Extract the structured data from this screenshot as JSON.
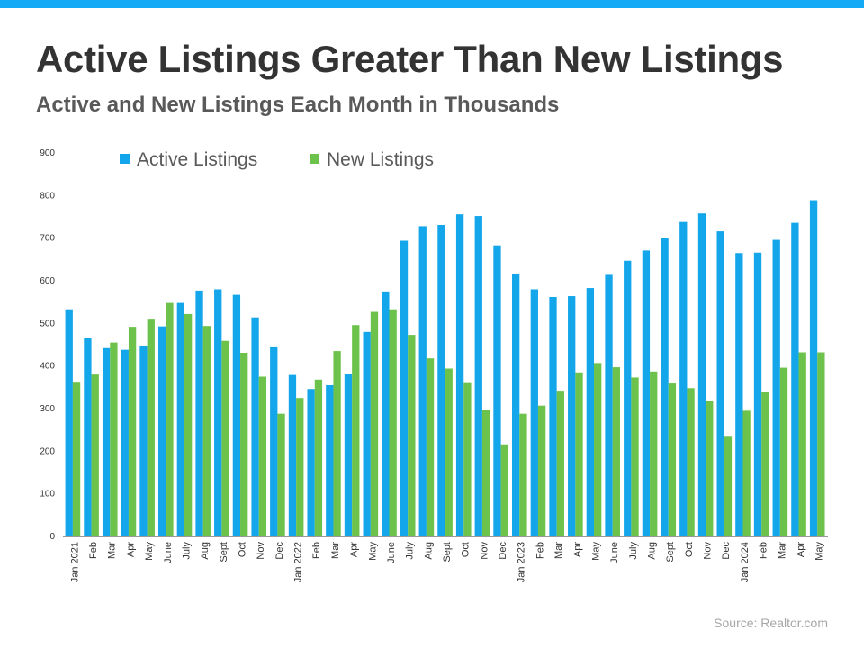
{
  "header": {
    "title": "Active Listings Greater Than New Listings",
    "subtitle": "Active and New Listings Each Month in Thousands"
  },
  "footer": {
    "source": "Source: Realtor.com"
  },
  "colors": {
    "accent_bar": "#14aaf5",
    "active": "#13a6ea",
    "new": "#6cc24a"
  },
  "chart_data": {
    "type": "bar",
    "title": "Active Listings Greater Than New Listings",
    "subtitle": "Active and New Listings Each Month in Thousands",
    "xlabel": "",
    "ylabel": "",
    "ylim": [
      0,
      900
    ],
    "yticks": [
      "0",
      "100",
      "200",
      "300",
      "400",
      "500",
      "600",
      "700",
      "800",
      "900"
    ],
    "grid": false,
    "legend_position": "top-left",
    "categories": [
      "Jan 2021",
      "Feb",
      "Mar",
      "Apr",
      "May",
      "June",
      "July",
      "Aug",
      "Sept",
      "Oct",
      "Nov",
      "Dec",
      "Jan 2022",
      "Feb",
      "Mar",
      "Apr",
      "May",
      "June",
      "July",
      "Aug",
      "Sept",
      "Oct",
      "Nov",
      "Dec",
      "Jan 2023",
      "Feb",
      "Mar",
      "Apr",
      "May",
      "June",
      "July",
      "Aug",
      "Sept",
      "Oct",
      "Nov",
      "Dec",
      "Jan 2024",
      "Feb",
      "Mar",
      "Apr",
      "May"
    ],
    "series": [
      {
        "name": "Active Listings",
        "color": "#13a6ea",
        "values": [
          533,
          465,
          442,
          438,
          448,
          493,
          548,
          577,
          580,
          567,
          514,
          446,
          379,
          346,
          355,
          381,
          480,
          575,
          694,
          728,
          731,
          756,
          752,
          683,
          617,
          580,
          562,
          564,
          583,
          616,
          647,
          671,
          701,
          738,
          758,
          716,
          665,
          666,
          696,
          736,
          789
        ]
      },
      {
        "name": "New Listings",
        "color": "#6cc24a",
        "values": [
          363,
          380,
          455,
          492,
          511,
          548,
          522,
          494,
          459,
          431,
          375,
          288,
          325,
          368,
          435,
          496,
          527,
          533,
          473,
          418,
          394,
          362,
          296,
          216,
          288,
          307,
          342,
          385,
          407,
          397,
          373,
          387,
          359,
          348,
          317,
          236,
          295,
          340,
          396,
          432,
          432
        ]
      }
    ]
  }
}
